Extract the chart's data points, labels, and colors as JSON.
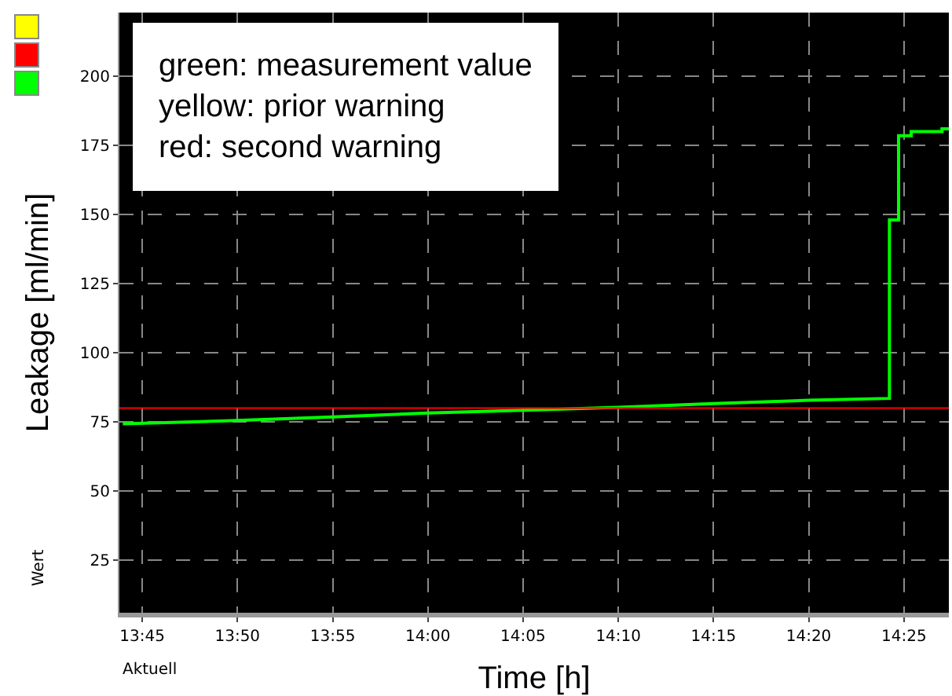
{
  "chart_data": {
    "type": "line",
    "xlabel": "Time [h]",
    "ylabel": "Leakage [ml/min]",
    "annotations": [
      "green: measurement value",
      "yellow: prior warning",
      "red: second warning",
      "Wert",
      "Aktuell"
    ],
    "series": [
      {
        "color": "#00ff00",
        "x": [
          13.733,
          13.833,
          13.917,
          14.0,
          14.083,
          14.167,
          14.25,
          14.333,
          14.404,
          14.404,
          14.412,
          14.412,
          14.423,
          14.423,
          14.45,
          14.45,
          14.456
        ],
        "values": [
          74.3,
          75.5,
          76.8,
          78.2,
          79.2,
          80.3,
          81.6,
          82.8,
          83.5,
          148,
          148,
          178.5,
          178.5,
          180,
          180,
          181,
          181
        ]
      }
    ],
    "xlim": [
      13.73,
      14.456
    ],
    "xticks": [
      {
        "value": 13.75,
        "label": "13:45"
      },
      {
        "value": 13.8333,
        "label": "13:50"
      },
      {
        "value": 13.9167,
        "label": "13:55"
      },
      {
        "value": 14.0,
        "label": "14:00"
      },
      {
        "value": 14.0833,
        "label": "14:05"
      },
      {
        "value": 14.1667,
        "label": "14:10"
      },
      {
        "value": 14.25,
        "label": "14:15"
      },
      {
        "value": 14.3333,
        "label": "14:20"
      },
      {
        "value": 14.4167,
        "label": "14:25"
      }
    ],
    "ylim": [
      6,
      223
    ],
    "yticks": [
      25,
      50,
      75,
      100,
      125,
      150,
      175,
      200
    ],
    "ref_lines": [
      {
        "axis": "y",
        "value": 80,
        "color": "#ff0000"
      }
    ],
    "grid": true,
    "line_style": "solid",
    "marker": "none"
  }
}
